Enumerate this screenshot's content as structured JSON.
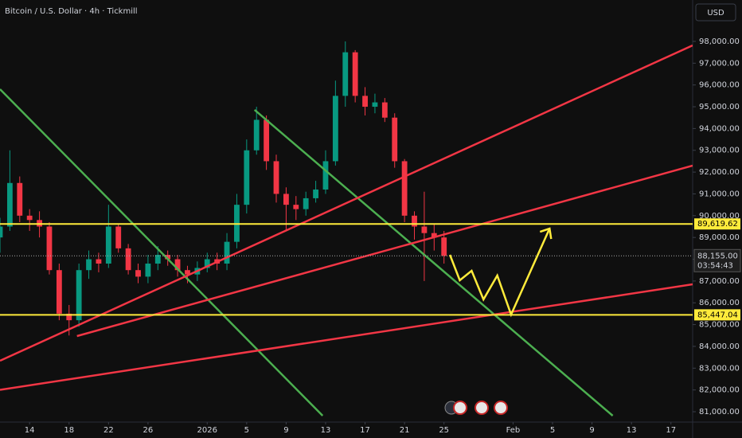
{
  "chart_data": {
    "type": "candlestick",
    "title": "Bitcoin / U.S. Dollar · 4h · Tickmill",
    "currency_button": "USD",
    "x": [
      -3,
      -2,
      -1,
      0,
      1,
      2,
      3,
      4,
      5,
      6,
      7,
      8,
      9,
      10,
      11,
      12,
      13,
      14,
      15,
      16,
      17,
      18,
      19,
      20,
      21,
      22,
      23,
      24,
      25,
      26,
      27,
      28,
      29,
      30,
      31,
      32,
      33,
      34,
      35,
      36,
      37,
      38,
      39,
      40,
      41,
      42
    ],
    "series": [
      {
        "up_color": "#089981",
        "down_color": "#f23645",
        "open": [
          89000,
          89500,
          91500,
          90000,
          89800,
          89500,
          87500,
          85500,
          85200,
          87500,
          88000,
          87800,
          89500,
          88500,
          87500,
          87200,
          87800,
          88200,
          88000,
          87500,
          87300,
          87600,
          88000,
          87800,
          88800,
          90500,
          93000,
          94400,
          92500,
          91000,
          90500,
          90300,
          90800,
          91200,
          92500,
          95500,
          97500,
          95500,
          95000,
          95200,
          94500,
          92500,
          90000,
          89500,
          89200,
          89000
        ],
        "high": [
          89900,
          93000,
          91800,
          90300,
          90200,
          89700,
          87800,
          85900,
          87800,
          88400,
          88300,
          90500,
          89600,
          88700,
          87800,
          88200,
          88600,
          88400,
          88200,
          87700,
          87900,
          88300,
          88300,
          89200,
          91000,
          93500,
          95000,
          94600,
          92800,
          91300,
          90900,
          91100,
          91600,
          93000,
          96200,
          98000,
          97600,
          95900,
          95600,
          95400,
          94700,
          92600,
          90200,
          91100,
          89600,
          89300
        ],
        "low": [
          88300,
          89300,
          89700,
          89300,
          89000,
          87300,
          85200,
          84500,
          84900,
          87100,
          87400,
          87600,
          88300,
          87300,
          86900,
          86900,
          87500,
          87700,
          87200,
          86900,
          87000,
          87400,
          87500,
          87500,
          88500,
          90100,
          92800,
          92100,
          90600,
          89300,
          89800,
          90000,
          90600,
          91000,
          92300,
          95000,
          95200,
          94600,
          94700,
          94300,
          92200,
          89700,
          88900,
          87000,
          88400,
          87800
        ],
        "close": [
          89500,
          91500,
          90000,
          89800,
          89500,
          87500,
          85500,
          85200,
          87500,
          88000,
          87800,
          89500,
          88500,
          87500,
          87200,
          87800,
          88200,
          88000,
          87500,
          87300,
          87600,
          88000,
          87800,
          88800,
          90500,
          93000,
          94400,
          92500,
          91000,
          90500,
          90300,
          90800,
          91200,
          92500,
          95500,
          97500,
          95500,
          95000,
          95200,
          94500,
          92500,
          90000,
          89500,
          89200,
          89000,
          88155
        ]
      }
    ],
    "xlim": [
      -3,
      67.2
    ],
    "ylim": [
      80525,
      99900
    ],
    "xticks": [
      {
        "value": 0,
        "label": "14"
      },
      {
        "value": 4,
        "label": "18"
      },
      {
        "value": 8,
        "label": "22"
      },
      {
        "value": 12,
        "label": "26"
      },
      {
        "value": 18,
        "label": "2026"
      },
      {
        "value": 22,
        "label": "5"
      },
      {
        "value": 26,
        "label": "9"
      },
      {
        "value": 30,
        "label": "13"
      },
      {
        "value": 34,
        "label": "17"
      },
      {
        "value": 38,
        "label": "21"
      },
      {
        "value": 42,
        "label": "25"
      },
      {
        "value": 49,
        "label": "Feb"
      },
      {
        "value": 53,
        "label": "5"
      },
      {
        "value": 57,
        "label": "9"
      },
      {
        "value": 61,
        "label": "13"
      },
      {
        "value": 65,
        "label": "17"
      }
    ],
    "yticks": [
      {
        "value": 81000,
        "label": "81,000.00"
      },
      {
        "value": 82000,
        "label": "82,000.00"
      },
      {
        "value": 83000,
        "label": "83,000.00"
      },
      {
        "value": 84000,
        "label": "84,000.00"
      },
      {
        "value": 85000,
        "label": "85,000.00"
      },
      {
        "value": 86000,
        "label": "86,000.00"
      },
      {
        "value": 87000,
        "label": "87,000.00"
      },
      {
        "value": 88000,
        "label": "88,000.00"
      },
      {
        "value": 89000,
        "label": "89,000.00"
      },
      {
        "value": 90000,
        "label": "90,000.00"
      },
      {
        "value": 91000,
        "label": "91,000.00"
      },
      {
        "value": 92000,
        "label": "92,000.00"
      },
      {
        "value": 93000,
        "label": "93,000.00"
      },
      {
        "value": 94000,
        "label": "94,000.00"
      },
      {
        "value": 95000,
        "label": "95,000.00"
      },
      {
        "value": 96000,
        "label": "96,000.00"
      },
      {
        "value": 97000,
        "label": "97,000.00"
      },
      {
        "value": 98000,
        "label": "98,000.00"
      }
    ],
    "grid": false,
    "levels": [
      {
        "value": 89619.62,
        "label": "89,619.62",
        "color": "#ffeb3b"
      },
      {
        "value": 85447.04,
        "label": "85,447.04",
        "color": "#ffeb3b"
      }
    ],
    "current_price": 88155,
    "current_price_label": "88,155.00",
    "countdown": "03:54:43",
    "trend_lines": [
      {
        "color": "#4caf50",
        "x": [
          -3,
          29.7
        ],
        "y": [
          95806,
          80817
        ]
      },
      {
        "color": "#4caf50",
        "x": [
          22.8,
          59.1
        ],
        "y": [
          94856,
          80817
        ]
      },
      {
        "color": "#f23645",
        "x": [
          -3,
          67.2
        ],
        "y": [
          83339,
          97817
        ]
      },
      {
        "color": "#f23645",
        "x": [
          4.8,
          67.2
        ],
        "y": [
          84473,
          92297
        ]
      },
      {
        "color": "#f23645",
        "x": [
          -3,
          67.2
        ],
        "y": [
          82006,
          86849
        ]
      }
    ],
    "projection": {
      "color": "#ffeb3b",
      "x": [
        42.6,
        43.6,
        44.8,
        46.0,
        47.4,
        48.8,
        52.7
      ],
      "y": [
        88202,
        87032,
        87471,
        86154,
        87251,
        85460,
        89408
      ]
    }
  }
}
